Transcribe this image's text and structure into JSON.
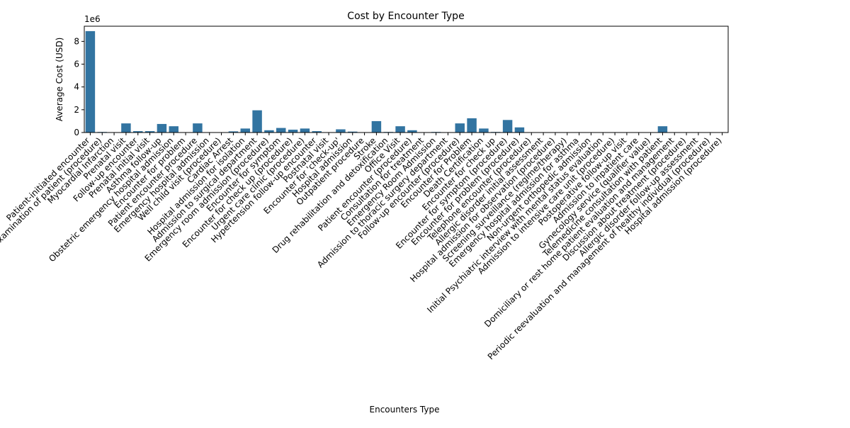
{
  "chart_data": {
    "type": "bar",
    "title": "Cost by Encounter Type",
    "x_label": "Encounters Type",
    "y_label": "Average Cost (USD)",
    "y_offset_label": "1e6",
    "color": "#3274a1",
    "categories": [
      "Patient-initiated encounter",
      "General examination of patient (procedure)",
      "Myocardial Infarction",
      "Prenatal visit",
      "Follow-up encounter",
      "Prenatal initial visit",
      "Asthma follow-up",
      "Obstetric emergency hospital admission",
      "Encounter for problem",
      "Patient encounter procedure",
      "Emergency hospital admission",
      "Well child visit (procedure)",
      "Cardiac Arrest",
      "Hospital admission for isolation",
      "Admission to surgical department",
      "Emergency room admission (procedure)",
      "Encounter for symptom",
      "Encounter for check up (procedure)",
      "Urgent care clinic (procedure)",
      "Hypertension follow-up encounter",
      "Postnatal visit",
      "Encounter for 'check-up'",
      "Hospital admission",
      "Outpatient procedure",
      "Stroke",
      "Drug rehabilitation and detoxification",
      "Office Visit",
      "Patient encounter (procedure)",
      "Consultation for treatment",
      "Emergency Room Admission",
      "Admission to thoracic surgery department",
      "Follow-up encounter (procedure)",
      "Encounter for Problem",
      "Death Certification",
      "Encounter for check up",
      "Encounter for symptom (procedure)",
      "Encounter for problem (procedure)",
      "Telephone encounter (procedure)",
      "Allergic disorder initial assessment",
      "Hospital admission for observation (procedure)",
      "Screening surveillance (regime/therapy)",
      "Emergency hospital admission for asthma",
      "Non-urgent orthopedic admission",
      "Initial Psychiatric interview with mental status evaluation",
      "Admission to intensive care unit (procedure)",
      "Postoperative follow-up visit",
      "Admission to inpatient care",
      "Gynecology service (qualifier value)",
      "Telemedicine consultation with patient",
      "Domiciliary or rest home patient evaluation and management",
      "Discussion about treatment (procedure)",
      "Allergic disorder follow-up assessment",
      "Periodic reevaluation and management of healthy individual (procedure)",
      "Hospital admission (procedure)"
    ],
    "values": [
      8.9,
      0.05,
      0,
      0.8,
      0.12,
      0.12,
      0.75,
      0.55,
      0,
      0.8,
      0,
      0,
      0.1,
      0.35,
      1.95,
      0.2,
      0.4,
      0.25,
      0.35,
      0.12,
      0.02,
      0.28,
      0.08,
      0.02,
      1.0,
      0.05,
      0.55,
      0.2,
      0.02,
      0.05,
      0.02,
      0.8,
      1.25,
      0.35,
      0.05,
      1.1,
      0.45,
      0,
      0,
      0,
      0,
      0,
      0,
      0,
      0,
      0,
      0,
      0,
      0.55,
      0,
      0,
      0,
      0,
      0
    ],
    "ylim": [
      0,
      9.33
    ],
    "yticks": [
      0,
      2,
      4,
      6,
      8
    ]
  }
}
